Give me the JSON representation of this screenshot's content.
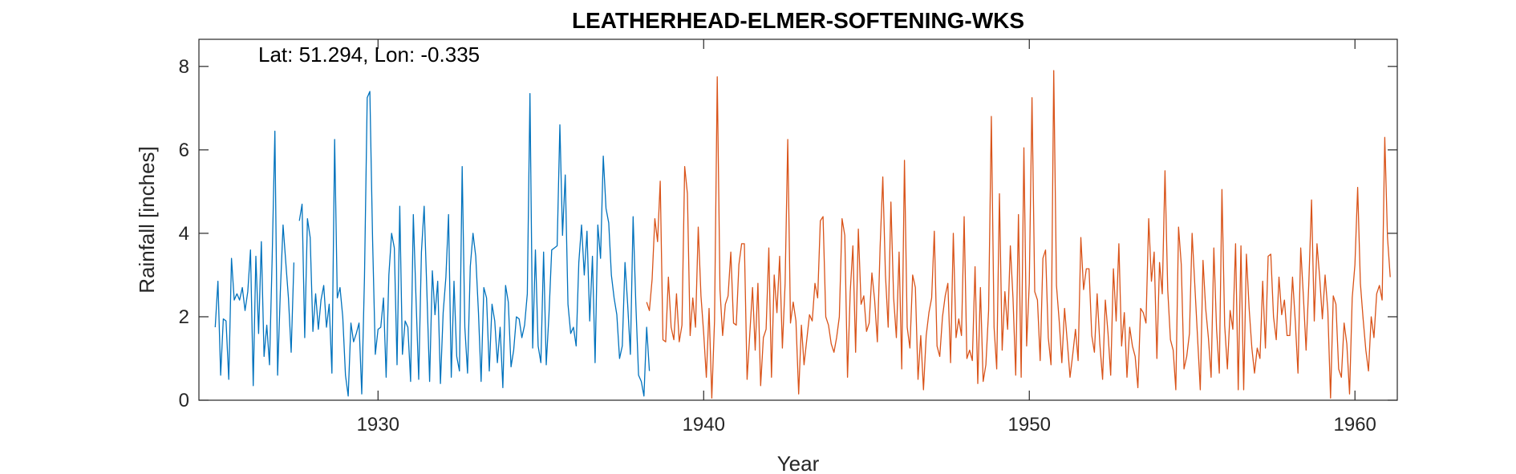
{
  "chart_data": {
    "type": "line",
    "title": "LEATHERHEAD-ELMER-SOFTENING-WKS",
    "annotation": "Lat: 51.294, Lon: -0.335",
    "xlabel": "Year",
    "ylabel": "Rainfall [inches]",
    "xlim": [
      1924.5,
      1961.3
    ],
    "ylim": [
      0,
      8.65
    ],
    "xticks": [
      1930,
      1940,
      1950,
      1960
    ],
    "yticks": [
      0,
      2,
      4,
      6,
      8
    ],
    "grid": false,
    "series": [
      {
        "color": "#0072BD",
        "start": 1925.0,
        "step": 0.0833333,
        "values": [
          1.75,
          2.85,
          0.6,
          1.95,
          1.9,
          0.5,
          3.4,
          2.4,
          2.55,
          2.4,
          2.7,
          2.15,
          2.6,
          3.6,
          0.35,
          3.45,
          1.6,
          3.8,
          1.05,
          1.8,
          0.85,
          3.4,
          6.45,
          0.6,
          2.6,
          4.2,
          3.3,
          2.45,
          1.15,
          3.3,
          null,
          4.3,
          4.7,
          1.5,
          4.35,
          3.9,
          1.65,
          2.55,
          1.7,
          2.4,
          2.75,
          1.75,
          2.3,
          0.65,
          6.25,
          2.45,
          2.7,
          2.0,
          0.6,
          0.1,
          1.85,
          1.4,
          1.6,
          1.85,
          0.15,
          2.95,
          7.25,
          7.4,
          3.85,
          1.1,
          1.7,
          1.75,
          2.45,
          0.55,
          3.0,
          4.0,
          3.65,
          0.85,
          4.65,
          1.1,
          1.9,
          1.75,
          0.45,
          4.45,
          2.4,
          0.5,
          3.55,
          4.65,
          2.6,
          0.45,
          3.1,
          2.05,
          2.85,
          0.4,
          2.1,
          2.95,
          4.45,
          0.55,
          2.85,
          1.05,
          0.7,
          5.6,
          1.75,
          0.65,
          3.2,
          4.0,
          3.45,
          2.1,
          0.45,
          2.7,
          2.45,
          0.7,
          2.3,
          1.9,
          0.9,
          1.75,
          0.3,
          2.75,
          2.35,
          0.8,
          1.2,
          2.0,
          1.95,
          1.5,
          1.8,
          2.55,
          7.35,
          1.25,
          3.6,
          1.3,
          0.9,
          3.55,
          0.85,
          2.05,
          3.6,
          3.65,
          3.7,
          6.6,
          3.95,
          5.4,
          2.3,
          1.6,
          1.75,
          1.3,
          3.3,
          4.2,
          3.0,
          4.05,
          1.9,
          3.45,
          0.9,
          4.2,
          3.4,
          5.85,
          4.6,
          4.25,
          3.0,
          2.45,
          2.05,
          1.0,
          1.3,
          3.3,
          2.3,
          1.1,
          4.4,
          2.3,
          0.6,
          0.45,
          0.1,
          1.75,
          0.7
        ]
      },
      {
        "color": "#D95319",
        "start": 1938.25,
        "step": 0.0833333,
        "values": [
          2.35,
          2.15,
          2.9,
          4.35,
          3.8,
          5.25,
          1.45,
          1.4,
          2.95,
          1.75,
          1.45,
          2.55,
          1.4,
          1.8,
          5.6,
          4.95,
          1.55,
          2.45,
          1.75,
          4.15,
          2.5,
          1.6,
          0.55,
          2.2,
          0.05,
          1.9,
          7.75,
          2.65,
          1.55,
          2.3,
          2.5,
          3.55,
          1.85,
          1.8,
          3.25,
          3.75,
          3.75,
          0.5,
          1.6,
          2.7,
          1.2,
          2.8,
          0.35,
          1.5,
          1.7,
          3.65,
          0.55,
          3.0,
          2.1,
          3.45,
          1.25,
          2.8,
          6.25,
          1.85,
          2.35,
          1.9,
          0.15,
          1.8,
          0.85,
          1.45,
          2.05,
          1.9,
          2.8,
          2.45,
          4.3,
          4.4,
          2.0,
          1.8,
          1.35,
          1.15,
          1.5,
          2.0,
          4.35,
          3.95,
          0.55,
          2.6,
          3.7,
          1.15,
          4.1,
          2.3,
          2.5,
          1.65,
          1.85,
          3.05,
          2.4,
          1.4,
          3.65,
          5.35,
          3.0,
          1.75,
          4.75,
          2.45,
          1.5,
          3.55,
          0.75,
          5.75,
          1.75,
          1.25,
          3.0,
          2.7,
          0.5,
          1.55,
          0.25,
          1.55,
          2.1,
          2.45,
          4.05,
          1.3,
          1.05,
          2.0,
          2.5,
          2.8,
          0.9,
          4.0,
          1.5,
          1.95,
          1.55,
          4.4,
          1.0,
          1.2,
          0.95,
          3.2,
          0.4,
          2.7,
          0.45,
          0.85,
          2.15,
          6.8,
          1.75,
          0.75,
          4.95,
          1.2,
          2.6,
          1.7,
          3.7,
          2.45,
          0.6,
          4.45,
          0.55,
          6.05,
          1.3,
          2.8,
          7.25,
          2.6,
          2.4,
          0.95,
          3.4,
          3.6,
          1.5,
          0.85,
          7.9,
          2.75,
          1.9,
          0.9,
          2.2,
          1.4,
          0.55,
          1.1,
          1.7,
          0.95,
          3.9,
          2.65,
          3.15,
          3.15,
          1.55,
          1.15,
          2.55,
          1.35,
          0.5,
          2.4,
          1.6,
          0.6,
          3.15,
          1.9,
          3.75,
          1.3,
          2.1,
          0.55,
          1.75,
          1.3,
          1.05,
          0.3,
          2.2,
          2.1,
          1.85,
          4.35,
          2.85,
          3.55,
          1.0,
          3.3,
          2.55,
          5.5,
          2.65,
          1.45,
          1.2,
          0.25,
          4.15,
          3.25,
          0.75,
          1.05,
          1.6,
          4.0,
          2.75,
          1.5,
          0.25,
          3.35,
          2.2,
          1.5,
          0.55,
          3.65,
          1.7,
          0.65,
          5.05,
          1.8,
          0.75,
          2.15,
          1.7,
          3.75,
          0.25,
          3.7,
          0.25,
          3.5,
          2.2,
          1.25,
          0.65,
          1.25,
          1.0,
          2.85,
          1.25,
          3.45,
          3.5,
          2.0,
          1.45,
          2.95,
          2.05,
          2.4,
          1.55,
          1.55,
          2.95,
          1.9,
          0.65,
          3.65,
          2.5,
          1.2,
          2.8,
          4.8,
          1.9,
          3.75,
          2.95,
          1.95,
          3.0,
          2.15,
          0.05,
          2.5,
          2.3,
          0.75,
          0.55,
          1.85,
          1.35,
          0.15,
          2.45,
          3.25,
          5.1,
          2.8,
          1.95,
          1.2,
          0.7,
          2.0,
          1.5,
          2.55,
          2.75,
          2.4,
          6.3,
          3.9,
          2.95
        ]
      }
    ]
  }
}
